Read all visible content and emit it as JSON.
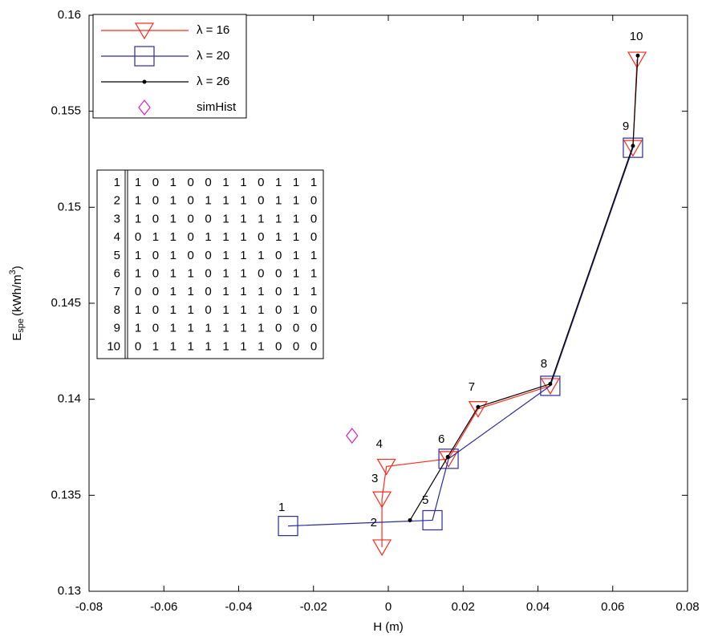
{
  "chart_data": {
    "type": "line",
    "xlabel": "H (m)",
    "ylabel": {
      "base": "E",
      "sub": "spe",
      "text": "(kWh/m",
      "sup": "3",
      "end": ")"
    },
    "xlim": [
      -0.08,
      0.08
    ],
    "xticks": [
      -0.08,
      -0.06,
      -0.04,
      -0.02,
      0,
      0.02,
      0.04,
      0.06,
      0.08
    ],
    "ylim": [
      0.13,
      0.16
    ],
    "yticks": [
      0.13,
      0.135,
      0.14,
      0.145,
      0.15,
      0.155,
      0.16
    ],
    "grid": false,
    "legend": "upper left",
    "series": [
      {
        "name": "λ = 16",
        "color": "#ff2a1a",
        "marker": "triangle-down",
        "line": true,
        "x": [
          -0.0017,
          -0.0017,
          -0.0005,
          0.0161,
          0.024,
          0.0433,
          0.0654,
          0.0665
        ],
        "values": [
          0.1323,
          0.1348,
          0.1365,
          0.1369,
          0.1395,
          0.1407,
          0.1531,
          0.1577
        ]
      },
      {
        "name": "λ = 20",
        "color": "#2a2a9a",
        "marker": "square",
        "line": true,
        "x": [
          -0.0268,
          0.0118,
          0.0161,
          0.0433,
          0.0654
        ],
        "values": [
          0.1334,
          0.1337,
          0.1369,
          0.1407,
          0.1531
        ]
      },
      {
        "name": "λ = 26",
        "color": "#000000",
        "marker": "dot",
        "line": true,
        "x": [
          0.0058,
          0.0159,
          0.024,
          0.0433,
          0.0654,
          0.0667
        ],
        "values": [
          0.1337,
          0.137,
          0.1396,
          0.1408,
          0.1532,
          0.1579
        ]
      },
      {
        "name": "simHist",
        "color": "#e020c0",
        "marker": "diamond",
        "line": false,
        "x": [
          -0.0097
        ],
        "values": [
          0.1381
        ]
      }
    ],
    "annotations": [
      {
        "text": "1",
        "x": -0.0285,
        "y": 0.13435
      },
      {
        "text": "2",
        "x": -0.0039,
        "y": 0.13355
      },
      {
        "text": "3",
        "x": -0.0036,
        "y": 0.13585
      },
      {
        "text": "4",
        "x": -0.0024,
        "y": 0.13765
      },
      {
        "text": "5",
        "x": 0.0099,
        "y": 0.13472
      },
      {
        "text": "6",
        "x": 0.0142,
        "y": 0.1379
      },
      {
        "text": "7",
        "x": 0.0223,
        "y": 0.14061
      },
      {
        "text": "8",
        "x": 0.0416,
        "y": 0.14182
      },
      {
        "text": "9",
        "x": 0.0635,
        "y": 0.15419
      },
      {
        "text": "10",
        "x": 0.0663,
        "y": 0.15887
      }
    ],
    "table": {
      "index": [
        1,
        2,
        3,
        4,
        5,
        6,
        7,
        8,
        9,
        10
      ],
      "rows": [
        [
          1,
          0,
          1,
          0,
          0,
          1,
          1,
          0,
          1,
          1,
          1
        ],
        [
          1,
          0,
          1,
          0,
          1,
          1,
          1,
          0,
          1,
          1,
          0
        ],
        [
          1,
          0,
          1,
          0,
          0,
          1,
          1,
          1,
          1,
          1,
          0
        ],
        [
          0,
          1,
          1,
          0,
          1,
          1,
          1,
          0,
          1,
          1,
          0
        ],
        [
          1,
          0,
          1,
          0,
          0,
          1,
          1,
          1,
          0,
          1,
          1
        ],
        [
          1,
          0,
          1,
          1,
          0,
          1,
          1,
          0,
          0,
          1,
          1
        ],
        [
          0,
          0,
          1,
          1,
          0,
          1,
          1,
          1,
          0,
          1,
          1
        ],
        [
          1,
          0,
          1,
          1,
          0,
          1,
          1,
          1,
          0,
          1,
          0
        ],
        [
          1,
          0,
          1,
          1,
          1,
          1,
          1,
          1,
          0,
          0,
          0
        ],
        [
          0,
          1,
          1,
          1,
          1,
          1,
          1,
          1,
          0,
          0,
          0
        ]
      ]
    }
  }
}
